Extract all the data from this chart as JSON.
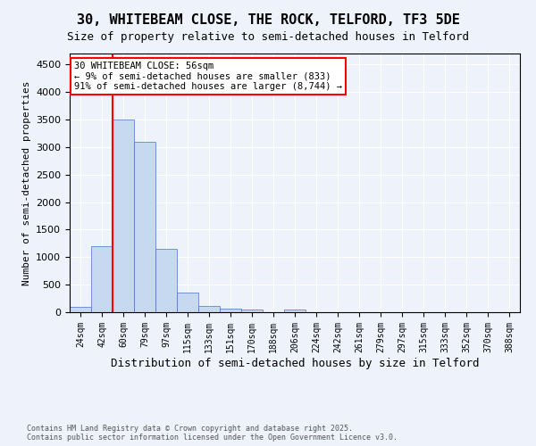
{
  "title": "30, WHITEBEAM CLOSE, THE ROCK, TELFORD, TF3 5DE",
  "subtitle": "Size of property relative to semi-detached houses in Telford",
  "xlabel": "Distribution of semi-detached houses by size in Telford",
  "ylabel": "Number of semi-detached properties",
  "categories": [
    "24sqm",
    "42sqm",
    "60sqm",
    "79sqm",
    "97sqm",
    "115sqm",
    "133sqm",
    "151sqm",
    "170sqm",
    "188sqm",
    "206sqm",
    "224sqm",
    "242sqm",
    "261sqm",
    "279sqm",
    "297sqm",
    "315sqm",
    "333sqm",
    "352sqm",
    "370sqm",
    "388sqm"
  ],
  "values": [
    100,
    1200,
    3500,
    3100,
    1150,
    350,
    120,
    60,
    50,
    5,
    50,
    5,
    0,
    0,
    0,
    0,
    0,
    0,
    0,
    0,
    0
  ],
  "bar_color": "#c6d9f1",
  "bar_edge_color": "#4472c4",
  "red_line_x": 1.5,
  "ylim": [
    0,
    4700
  ],
  "annotation_text": "30 WHITEBEAM CLOSE: 56sqm\n← 9% of semi-detached houses are smaller (833)\n91% of semi-detached houses are larger (8,744) →",
  "footnote": "Contains HM Land Registry data © Crown copyright and database right 2025.\nContains public sector information licensed under the Open Government Licence v3.0.",
  "background_color": "#eef2fb",
  "grid_color": "#ffffff",
  "title_fontsize": 11,
  "subtitle_fontsize": 9,
  "annotation_fontsize": 7.5,
  "tick_fontsize": 7,
  "ylabel_fontsize": 8,
  "xlabel_fontsize": 9
}
